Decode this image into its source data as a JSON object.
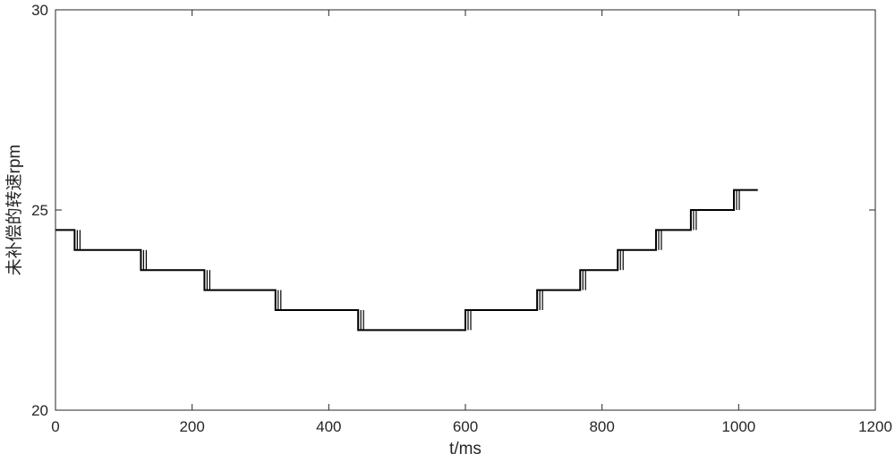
{
  "chart_data": {
    "type": "line",
    "xlabel": "t/ms",
    "ylabel": "未补偿的转速rpm",
    "xlim": [
      0,
      1200
    ],
    "ylim": [
      20,
      30
    ],
    "xticks": [
      0,
      200,
      400,
      600,
      800,
      1000,
      1200
    ],
    "yticks": [
      20,
      25,
      30
    ],
    "xtick_labels": [
      "0",
      "200",
      "400",
      "600",
      "800",
      "1000",
      "1200"
    ],
    "ytick_labels": [
      "20",
      "25",
      "30"
    ],
    "grid": false,
    "line_color": "#000000",
    "series": [
      {
        "x": [
          0,
          28,
          28,
          125,
          125,
          218,
          218,
          322,
          322,
          443,
          443,
          600,
          600,
          705,
          705,
          768,
          768,
          823,
          823,
          879,
          879,
          930,
          930,
          993,
          993,
          1028
        ],
        "y": [
          24.5,
          24.5,
          24,
          24,
          23.5,
          23.5,
          23,
          23,
          22.5,
          22.5,
          22,
          22,
          22.5,
          22.5,
          23,
          23,
          23.5,
          23.5,
          24,
          24,
          24.5,
          24.5,
          25,
          25,
          25.5,
          25.5
        ]
      }
    ]
  }
}
